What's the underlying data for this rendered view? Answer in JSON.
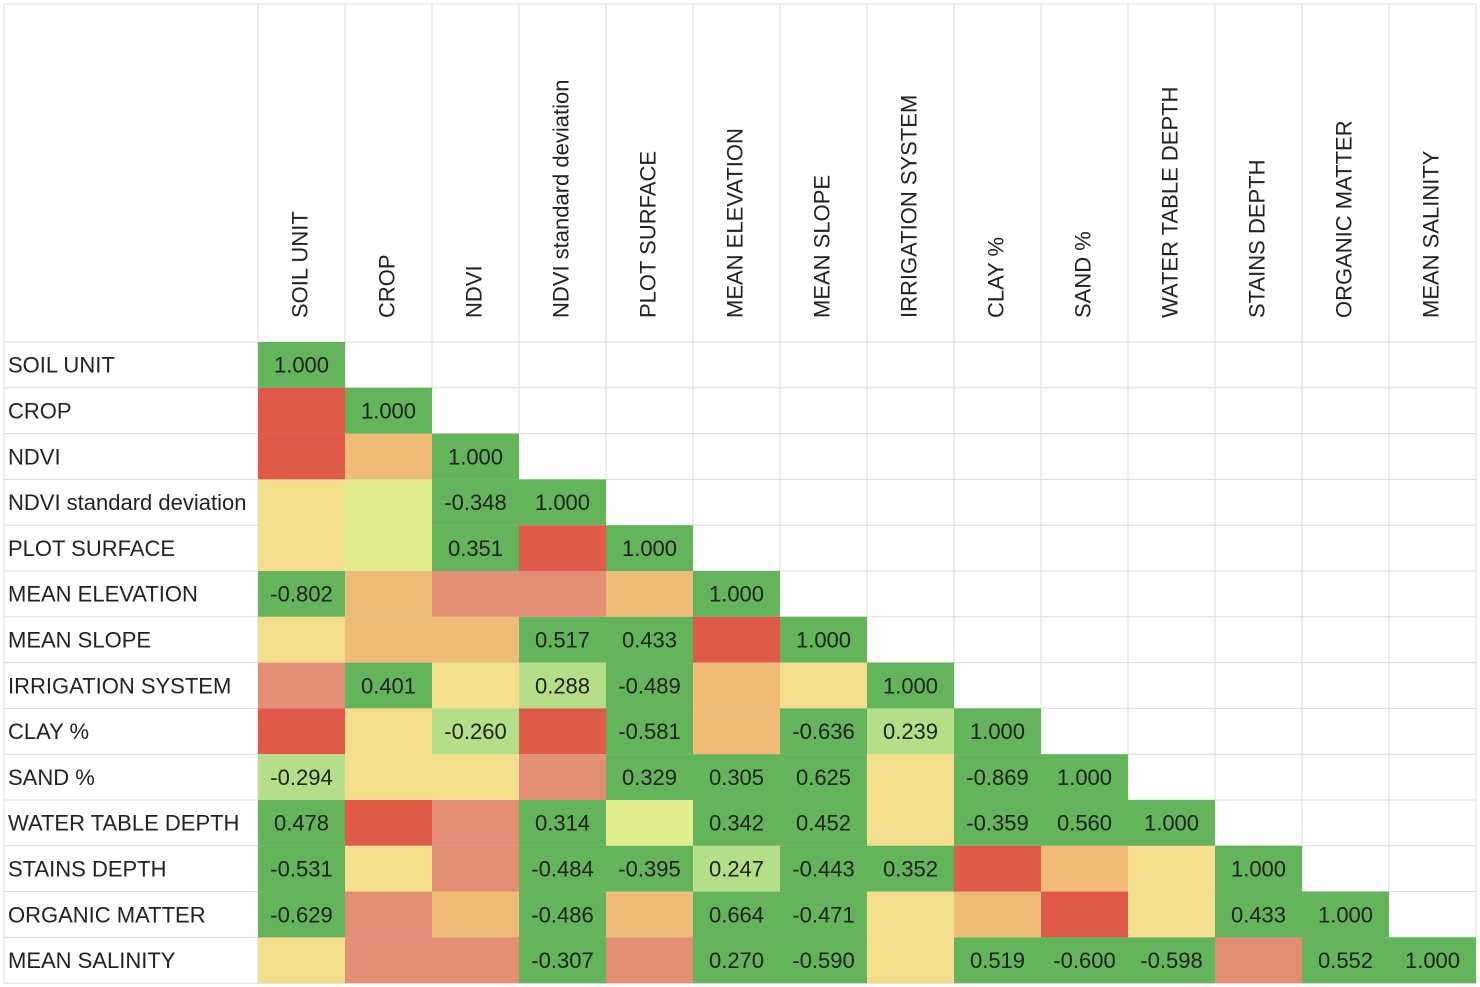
{
  "columns": [
    "SOIL UNIT",
    "CROP",
    "NDVI",
    "NDVI standard deviation",
    "PLOT SURFACE",
    "MEAN ELEVATION",
    "MEAN SLOPE",
    "IRRIGATION SYSTEM",
    "CLAY %",
    "SAND %",
    "WATER TABLE DEPTH",
    "STAINS DEPTH",
    "ORGANIC MATTER",
    "MEAN SALINITY"
  ],
  "rows": [
    {
      "label": "SOIL UNIT",
      "cells": [
        {
          "text": "1.000",
          "color": "#63b45a"
        }
      ]
    },
    {
      "label": "CROP",
      "cells": [
        {
          "color": "#df5a49"
        },
        {
          "text": "1.000",
          "color": "#63b45a"
        }
      ]
    },
    {
      "label": "NDVI",
      "cells": [
        {
          "color": "#df5a49"
        },
        {
          "color": "#eebc76"
        },
        {
          "text": "1.000",
          "color": "#63b45a"
        }
      ]
    },
    {
      "label": "NDVI standard deviation",
      "cells": [
        {
          "color": "#f3de8b"
        },
        {
          "color": "#e1ec8c"
        },
        {
          "text": "-0.348",
          "color": "#63b45a"
        },
        {
          "text": "1.000",
          "color": "#63b45a"
        }
      ]
    },
    {
      "label": "PLOT SURFACE",
      "cells": [
        {
          "color": "#f3de8b"
        },
        {
          "color": "#e1ec8c"
        },
        {
          "text": "0.351",
          "color": "#63b45a"
        },
        {
          "color": "#df5a49"
        },
        {
          "text": "1.000",
          "color": "#63b45a"
        }
      ]
    },
    {
      "label": "MEAN ELEVATION",
      "cells": [
        {
          "text": "-0.802",
          "color": "#63b45a"
        },
        {
          "color": "#eebc76"
        },
        {
          "color": "#e28f75"
        },
        {
          "color": "#e28f75"
        },
        {
          "color": "#eebc76"
        },
        {
          "text": "1.000",
          "color": "#63b45a"
        }
      ]
    },
    {
      "label": "MEAN SLOPE",
      "cells": [
        {
          "color": "#f3de8b"
        },
        {
          "color": "#eebc76"
        },
        {
          "color": "#eebc76"
        },
        {
          "text": "0.517",
          "color": "#63b45a"
        },
        {
          "text": "0.433",
          "color": "#63b45a"
        },
        {
          "color": "#df5a49"
        },
        {
          "text": "1.000",
          "color": "#63b45a"
        }
      ]
    },
    {
      "label": "IRRIGATION SYSTEM",
      "cells": [
        {
          "color": "#e28f75"
        },
        {
          "text": "0.401",
          "color": "#63b45a"
        },
        {
          "color": "#f3de8b"
        },
        {
          "text": "0.288",
          "color": "#b4df88"
        },
        {
          "text": "-0.489",
          "color": "#63b45a"
        },
        {
          "color": "#eebc76"
        },
        {
          "color": "#f3de8b"
        },
        {
          "text": "1.000",
          "color": "#63b45a"
        }
      ]
    },
    {
      "label": "CLAY %",
      "cells": [
        {
          "color": "#df5a49"
        },
        {
          "color": "#f3de8b"
        },
        {
          "text": "-0.260",
          "color": "#b4df88"
        },
        {
          "color": "#df5a49"
        },
        {
          "text": "-0.581",
          "color": "#63b45a"
        },
        {
          "color": "#eebc76"
        },
        {
          "text": "-0.636",
          "color": "#63b45a"
        },
        {
          "text": "0.239",
          "color": "#b4df88"
        },
        {
          "text": "1.000",
          "color": "#63b45a"
        }
      ]
    },
    {
      "label": "SAND %",
      "cells": [
        {
          "text": "-0.294",
          "color": "#b4df88"
        },
        {
          "color": "#f3de8b"
        },
        {
          "color": "#f3de8b"
        },
        {
          "color": "#e28f75"
        },
        {
          "text": "0.329",
          "color": "#63b45a"
        },
        {
          "text": "0.305",
          "color": "#63b45a"
        },
        {
          "text": "0.625",
          "color": "#63b45a"
        },
        {
          "color": "#f3de8b"
        },
        {
          "text": "-0.869",
          "color": "#63b45a"
        },
        {
          "text": "1.000",
          "color": "#63b45a"
        }
      ]
    },
    {
      "label": "WATER TABLE DEPTH",
      "cells": [
        {
          "text": "0.478",
          "color": "#63b45a"
        },
        {
          "color": "#df5a49"
        },
        {
          "color": "#e28f75"
        },
        {
          "text": "0.314",
          "color": "#63b45a"
        },
        {
          "color": "#e1ec8c"
        },
        {
          "text": "0.342",
          "color": "#63b45a"
        },
        {
          "text": "0.452",
          "color": "#63b45a"
        },
        {
          "color": "#f3de8b"
        },
        {
          "text": "-0.359",
          "color": "#63b45a"
        },
        {
          "text": "0.560",
          "color": "#63b45a"
        },
        {
          "text": "1.000",
          "color": "#63b45a"
        }
      ]
    },
    {
      "label": "STAINS DEPTH",
      "cells": [
        {
          "text": "-0.531",
          "color": "#63b45a"
        },
        {
          "color": "#f3de8b"
        },
        {
          "color": "#e28f75"
        },
        {
          "text": "-0.484",
          "color": "#63b45a"
        },
        {
          "text": "-0.395",
          "color": "#63b45a"
        },
        {
          "text": "0.247",
          "color": "#b4df88"
        },
        {
          "text": "-0.443",
          "color": "#63b45a"
        },
        {
          "text": "0.352",
          "color": "#63b45a"
        },
        {
          "color": "#df5a49"
        },
        {
          "color": "#eebc76"
        },
        {
          "color": "#f3de8b"
        },
        {
          "text": "1.000",
          "color": "#63b45a"
        }
      ]
    },
    {
      "label": "ORGANIC MATTER",
      "cells": [
        {
          "text": "-0.629",
          "color": "#63b45a"
        },
        {
          "color": "#e28f75"
        },
        {
          "color": "#eebc76"
        },
        {
          "text": "-0.486",
          "color": "#63b45a"
        },
        {
          "color": "#eebc76"
        },
        {
          "text": "0.664",
          "color": "#63b45a"
        },
        {
          "text": "-0.471",
          "color": "#63b45a"
        },
        {
          "color": "#f3de8b"
        },
        {
          "color": "#eebc76"
        },
        {
          "color": "#df5a49"
        },
        {
          "color": "#f3de8b"
        },
        {
          "text": "0.433",
          "color": "#63b45a"
        },
        {
          "text": "1.000",
          "color": "#63b45a"
        }
      ]
    },
    {
      "label": "MEAN SALINITY",
      "cells": [
        {
          "color": "#f3de8b"
        },
        {
          "color": "#e28f75"
        },
        {
          "color": "#e28f75"
        },
        {
          "text": "-0.307",
          "color": "#63b45a"
        },
        {
          "color": "#e28f75"
        },
        {
          "text": "0.270",
          "color": "#63b45a"
        },
        {
          "text": "-0.590",
          "color": "#63b45a"
        },
        {
          "color": "#f3de8b"
        },
        {
          "text": "0.519",
          "color": "#63b45a"
        },
        {
          "text": "-0.600",
          "color": "#63b45a"
        },
        {
          "text": "-0.598",
          "color": "#63b45a"
        },
        {
          "color": "#e28f75"
        },
        {
          "text": "0.552",
          "color": "#63b45a"
        },
        {
          "text": "1.000",
          "color": "#63b45a"
        }
      ]
    }
  ]
}
